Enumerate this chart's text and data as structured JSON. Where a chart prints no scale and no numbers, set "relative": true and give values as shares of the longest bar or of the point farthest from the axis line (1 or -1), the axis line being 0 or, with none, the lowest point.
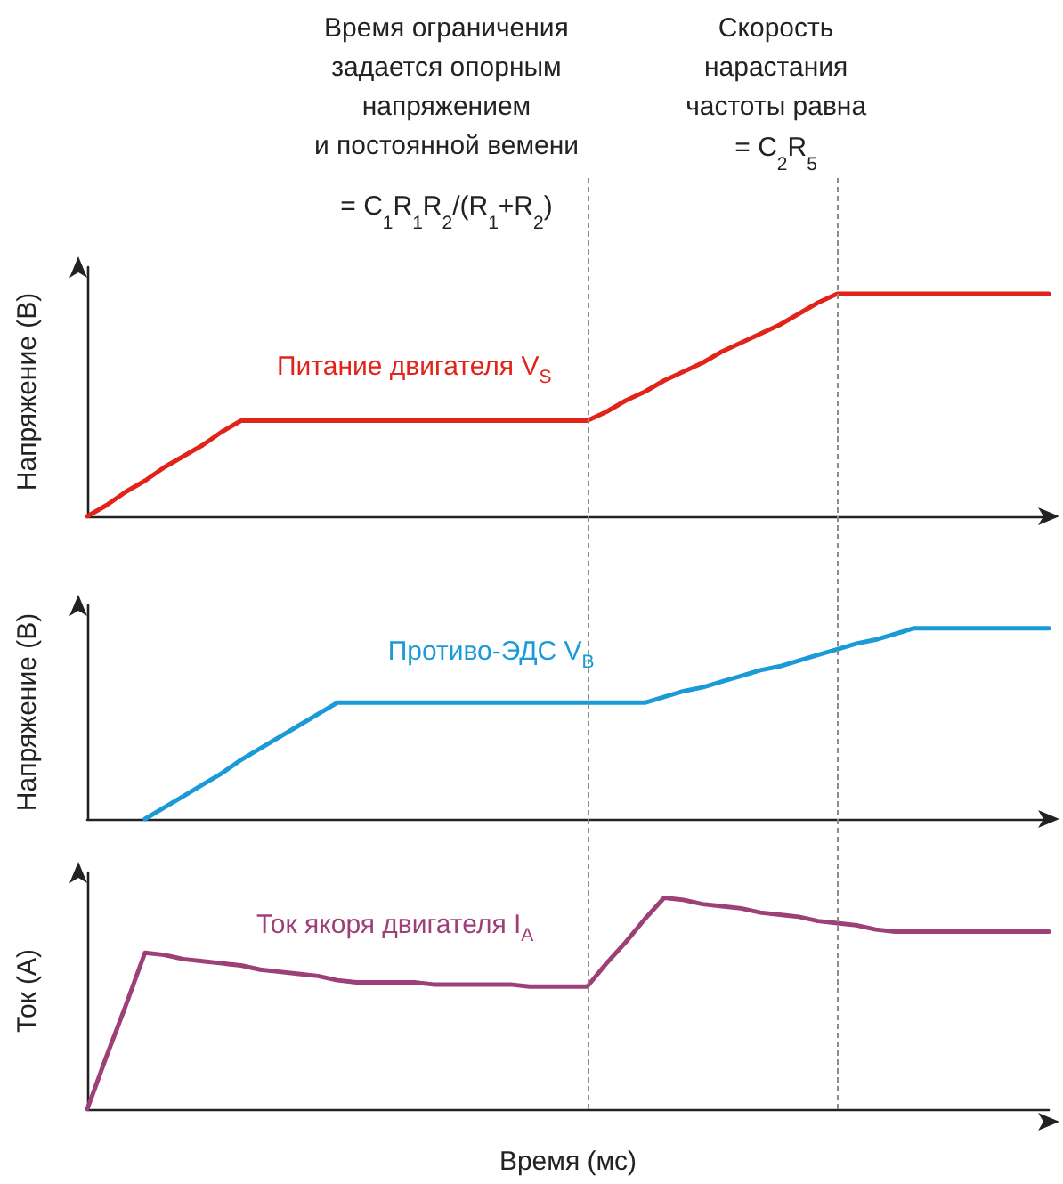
{
  "chart_data": [
    {
      "type": "line",
      "relative": true,
      "ylabel": "Напряжение (В)",
      "grid": false,
      "marker": "none",
      "categories": [
        null,
        null,
        null,
        null,
        null,
        null,
        null,
        null,
        null,
        null,
        null,
        null,
        null,
        null,
        null,
        null,
        null,
        null,
        null,
        null,
        null,
        null,
        null,
        null,
        null,
        null,
        null,
        null,
        null,
        null,
        null,
        null,
        null,
        null,
        null,
        null,
        null,
        null,
        null,
        null,
        null,
        null,
        null,
        null,
        null,
        null,
        null,
        null,
        null,
        null,
        null
      ],
      "series": [
        {
          "name": "Питание двигателя V$_{S}$",
          "color": "#e2231a",
          "values": [
            0,
            0.05,
            0.11,
            0.16,
            0.22,
            0.27,
            0.32,
            0.38,
            0.43,
            0.43,
            0.43,
            0.43,
            0.43,
            0.43,
            0.43,
            0.43,
            0.43,
            0.43,
            0.43,
            0.43,
            0.43,
            0.43,
            0.43,
            0.43,
            0.43,
            0.43,
            0.43,
            0.47,
            0.52,
            0.56,
            0.61,
            0.65,
            0.69,
            0.74,
            0.78,
            0.82,
            0.86,
            0.91,
            0.96,
            1,
            1,
            1,
            1,
            1,
            1,
            1,
            1,
            1,
            1,
            1,
            1
          ]
        }
      ],
      "annotations": [
        "Время ограничения\nзадается опорным\nнапряжением\nи постоянной вемени",
        "= C$_{1}$R$_{1}$R$_{2}$/(R$_{1}$+R$_{2}$)",
        "Скорость\nнарастания\nчастоты равна",
        "= C$_{2}$R$_{5}$"
      ]
    },
    {
      "type": "line",
      "relative": true,
      "ylabel": "Напряжение (В)",
      "grid": false,
      "marker": "none",
      "categories": [
        null,
        null,
        null,
        null,
        null,
        null,
        null,
        null,
        null,
        null,
        null,
        null,
        null,
        null,
        null,
        null,
        null,
        null,
        null,
        null,
        null,
        null,
        null,
        null,
        null,
        null,
        null,
        null,
        null,
        null,
        null,
        null,
        null,
        null,
        null,
        null,
        null,
        null,
        null,
        null,
        null,
        null,
        null,
        null,
        null,
        null,
        null,
        null,
        null,
        null,
        null
      ],
      "series": [
        {
          "name": "Противо-ЭДС V$_{B}$",
          "color": "#1a9ad6",
          "values": [
            null,
            null,
            null,
            0,
            0.06,
            0.12,
            0.18,
            0.24,
            0.31,
            0.37,
            0.43,
            0.49,
            0.55,
            0.61,
            0.61,
            0.61,
            0.61,
            0.61,
            0.61,
            0.61,
            0.61,
            0.61,
            0.61,
            0.61,
            0.61,
            0.61,
            0.61,
            0.61,
            0.61,
            0.61,
            0.64,
            0.67,
            0.69,
            0.72,
            0.75,
            0.78,
            0.8,
            0.83,
            0.86,
            0.89,
            0.92,
            0.94,
            0.97,
            1,
            1,
            1,
            1,
            1,
            1,
            1,
            1
          ]
        }
      ]
    },
    {
      "type": "line",
      "relative": true,
      "ylabel": "Ток (А)",
      "xlabel": "Время (мс)",
      "grid": false,
      "marker": "none",
      "categories": [
        null,
        null,
        null,
        null,
        null,
        null,
        null,
        null,
        null,
        null,
        null,
        null,
        null,
        null,
        null,
        null,
        null,
        null,
        null,
        null,
        null,
        null,
        null,
        null,
        null,
        null,
        null,
        null,
        null,
        null,
        null,
        null,
        null,
        null,
        null,
        null,
        null,
        null,
        null,
        null,
        null,
        null,
        null,
        null,
        null,
        null,
        null,
        null,
        null,
        null,
        null
      ],
      "series": [
        {
          "name": "Ток якоря двигателя I$_{A}$",
          "color": "#9e4078",
          "values": [
            0,
            0.25,
            0.49,
            0.74,
            0.73,
            0.71,
            0.7,
            0.69,
            0.68,
            0.66,
            0.65,
            0.64,
            0.63,
            0.61,
            0.6,
            0.6,
            0.6,
            0.6,
            0.59,
            0.59,
            0.59,
            0.59,
            0.59,
            0.58,
            0.58,
            0.58,
            0.58,
            0.69,
            0.79,
            0.9,
            1,
            0.99,
            0.97,
            0.96,
            0.95,
            0.93,
            0.92,
            0.91,
            0.89,
            0.88,
            0.87,
            0.85,
            0.84,
            0.84,
            0.84,
            0.84,
            0.84,
            0.84,
            0.84,
            0.84,
            0.84
          ]
        }
      ]
    }
  ]
}
